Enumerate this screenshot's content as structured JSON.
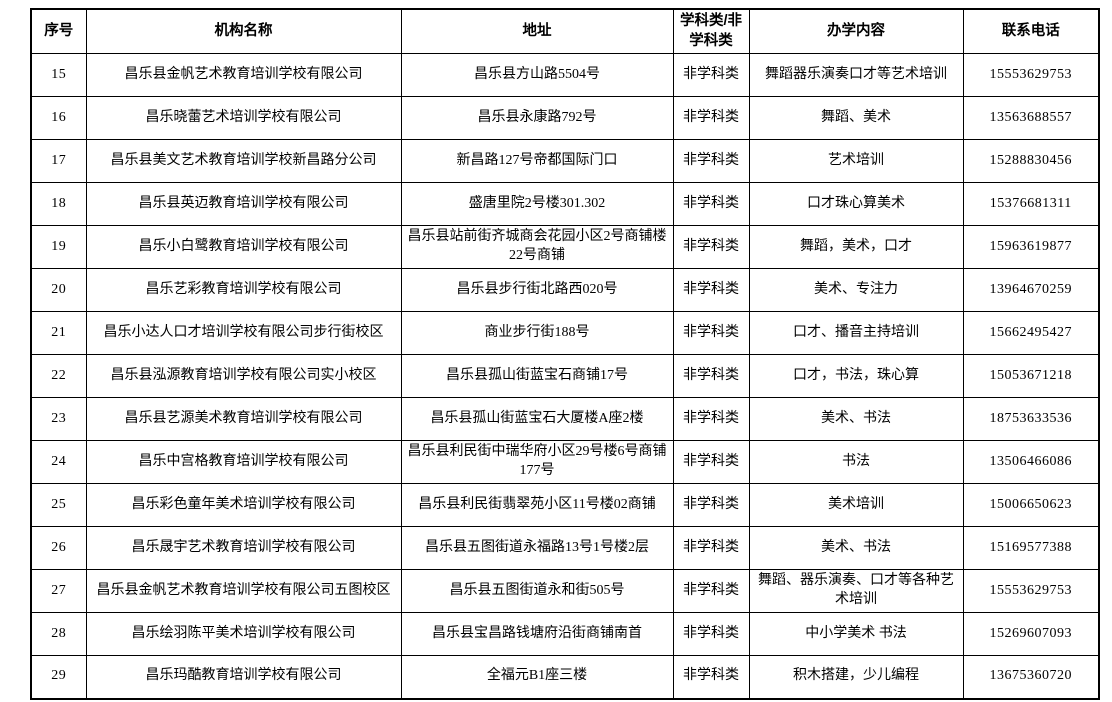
{
  "colors": {
    "background": "#ffffff",
    "border": "#000000",
    "text": "#000000"
  },
  "table": {
    "columns": [
      "序号",
      "机构名称",
      "地址",
      "学科类/非学科类",
      "办学内容",
      "联系电话"
    ],
    "rows": [
      [
        "15",
        "昌乐县金帆艺术教育培训学校有限公司",
        "昌乐县方山路5504号",
        "非学科类",
        "舞蹈器乐演奏口才等艺术培训",
        "15553629753"
      ],
      [
        "16",
        "昌乐晓蕾艺术培训学校有限公司",
        "昌乐县永康路792号",
        "非学科类",
        "舞蹈、美术",
        "13563688557"
      ],
      [
        "17",
        "昌乐县美文艺术教育培训学校新昌路分公司",
        "新昌路127号帝都国际门口",
        "非学科类",
        "艺术培训",
        "15288830456"
      ],
      [
        "18",
        "昌乐县英迈教育培训学校有限公司",
        "盛唐里院2号楼301.302",
        "非学科类",
        "口才珠心算美术",
        "15376681311"
      ],
      [
        "19",
        "昌乐小白鹭教育培训学校有限公司",
        "昌乐县站前街齐城商会花园小区2号商铺楼22号商铺",
        "非学科类",
        "舞蹈，美术，口才",
        "15963619877"
      ],
      [
        "20",
        "昌乐艺彩教育培训学校有限公司",
        "昌乐县步行街北路西020号",
        "非学科类",
        "美术、专注力",
        "13964670259"
      ],
      [
        "21",
        "昌乐小达人口才培训学校有限公司步行街校区",
        "商业步行街188号",
        "非学科类",
        "口才、播音主持培训",
        "15662495427"
      ],
      [
        "22",
        "昌乐县泓源教育培训学校有限公司实小校区",
        "昌乐县孤山街蓝宝石商铺17号",
        "非学科类",
        "口才，书法，珠心算",
        "15053671218"
      ],
      [
        "23",
        "昌乐县艺源美术教育培训学校有限公司",
        "昌乐县孤山街蓝宝石大厦楼A座2楼",
        "非学科类",
        "美术、书法",
        "18753633536"
      ],
      [
        "24",
        "昌乐中宫格教育培训学校有限公司",
        "昌乐县利民街中瑞华府小区29号楼6号商铺177号",
        "非学科类",
        "书法",
        "13506466086"
      ],
      [
        "25",
        "昌乐彩色童年美术培训学校有限公司",
        "昌乐县利民街翡翠苑小区11号楼02商铺",
        "非学科类",
        "美术培训",
        "15006650623"
      ],
      [
        "26",
        "昌乐晟宇艺术教育培训学校有限公司",
        "昌乐县五图街道永福路13号1号楼2层",
        "非学科类",
        "美术、书法",
        "15169577388"
      ],
      [
        "27",
        "昌乐县金帆艺术教育培训学校有限公司五图校区",
        "昌乐县五图街道永和街505号",
        "非学科类",
        "舞蹈、器乐演奏、口才等各种艺术培训",
        "15553629753"
      ],
      [
        "28",
        "昌乐绘羽陈平美术培训学校有限公司",
        "昌乐县宝昌路钱塘府沿街商铺南首",
        "非学科类",
        "中小学美术 书法",
        "15269607093"
      ],
      [
        "29",
        "昌乐玛酷教育培训学校有限公司",
        "全福元B1座三楼",
        "非学科类",
        "积木搭建，少儿编程",
        "13675360720"
      ]
    ]
  }
}
